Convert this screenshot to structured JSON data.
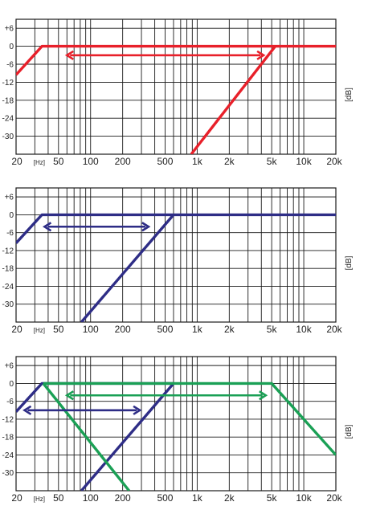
{
  "chart_data": [
    {
      "type": "line",
      "x_scale": "log",
      "xlim": [
        20,
        20000
      ],
      "ylim": [
        -36,
        9
      ],
      "x_ticks": [
        {
          "value": 20,
          "label": "20"
        },
        {
          "value": 33,
          "label": "[Hz]"
        },
        {
          "value": 50,
          "label": "50"
        },
        {
          "value": 100,
          "label": "100"
        },
        {
          "value": 200,
          "label": "200"
        },
        {
          "value": 500,
          "label": "500"
        },
        {
          "value": 1000,
          "label": "1k"
        },
        {
          "value": 2000,
          "label": "2k"
        },
        {
          "value": 5000,
          "label": "5k"
        },
        {
          "value": 10000,
          "label": "10k"
        },
        {
          "value": 20000,
          "label": "20k"
        }
      ],
      "y_ticks": [
        {
          "value": 6,
          "label": "+6"
        },
        {
          "value": 0,
          "label": "0"
        },
        {
          "value": -6,
          "label": "-6"
        },
        {
          "value": -12,
          "label": "-12"
        },
        {
          "value": -18,
          "label": "-18"
        },
        {
          "value": -24,
          "label": "-24"
        },
        {
          "value": -30,
          "label": "-30"
        }
      ],
      "ylabel": "[dB]",
      "grid": true,
      "series": [
        {
          "color": "#e8202a",
          "points": [
            [
              20,
              -9.5
            ],
            [
              35,
              0
            ],
            [
              5400,
              0
            ],
            [
              20000,
              0
            ]
          ]
        },
        {
          "color": "#e8202a",
          "points": [
            [
              880,
              -36
            ],
            [
              5400,
              0
            ]
          ]
        }
      ],
      "arrows": [
        {
          "color": "#e8202a",
          "from": 60,
          "to": 4200,
          "y": -3
        }
      ]
    },
    {
      "type": "line",
      "x_scale": "log",
      "xlim": [
        20,
        20000
      ],
      "ylim": [
        -36,
        9
      ],
      "x_ticks": [
        {
          "value": 20,
          "label": "20"
        },
        {
          "value": 33,
          "label": "[Hz]"
        },
        {
          "value": 50,
          "label": "50"
        },
        {
          "value": 100,
          "label": "100"
        },
        {
          "value": 200,
          "label": "200"
        },
        {
          "value": 500,
          "label": "500"
        },
        {
          "value": 1000,
          "label": "1k"
        },
        {
          "value": 2000,
          "label": "2k"
        },
        {
          "value": 5000,
          "label": "5k"
        },
        {
          "value": 10000,
          "label": "10k"
        },
        {
          "value": 20000,
          "label": "20k"
        }
      ],
      "y_ticks": [
        {
          "value": 6,
          "label": "+6"
        },
        {
          "value": 0,
          "label": "0"
        },
        {
          "value": -6,
          "label": "-6"
        },
        {
          "value": -12,
          "label": "-12"
        },
        {
          "value": -18,
          "label": "-18"
        },
        {
          "value": -24,
          "label": "-24"
        },
        {
          "value": -30,
          "label": "-30"
        }
      ],
      "ylabel": "[dB]",
      "grid": true,
      "series": [
        {
          "color": "#2e2d86",
          "points": [
            [
              20,
              -9.5
            ],
            [
              35,
              0
            ],
            [
              600,
              0
            ],
            [
              20000,
              0
            ]
          ]
        },
        {
          "color": "#2e2d86",
          "points": [
            [
              82,
              -36
            ],
            [
              600,
              0
            ]
          ]
        }
      ],
      "arrows": [
        {
          "color": "#2e2d86",
          "from": 37,
          "to": 350,
          "y": -4
        }
      ]
    },
    {
      "type": "line",
      "x_scale": "log",
      "xlim": [
        20,
        20000
      ],
      "ylim": [
        -36,
        9
      ],
      "x_ticks": [
        {
          "value": 20,
          "label": "20"
        },
        {
          "value": 33,
          "label": "[Hz]"
        },
        {
          "value": 50,
          "label": "50"
        },
        {
          "value": 100,
          "label": "100"
        },
        {
          "value": 200,
          "label": "200"
        },
        {
          "value": 500,
          "label": "500"
        },
        {
          "value": 1000,
          "label": "1k"
        },
        {
          "value": 2000,
          "label": "2k"
        },
        {
          "value": 5000,
          "label": "5k"
        },
        {
          "value": 10000,
          "label": "10k"
        },
        {
          "value": 20000,
          "label": "20k"
        }
      ],
      "y_ticks": [
        {
          "value": 6,
          "label": "+6"
        },
        {
          "value": 0,
          "label": "0"
        },
        {
          "value": -6,
          "label": "-6"
        },
        {
          "value": -12,
          "label": "-12"
        },
        {
          "value": -18,
          "label": "-18"
        },
        {
          "value": -24,
          "label": "-24"
        },
        {
          "value": -30,
          "label": "-30"
        }
      ],
      "ylabel": "[dB]",
      "grid": true,
      "series": [
        {
          "color": "#2e2d86",
          "points": [
            [
              20,
              -9.5
            ],
            [
              35,
              0
            ],
            [
              600,
              0
            ]
          ]
        },
        {
          "color": "#2e2d86",
          "points": [
            [
              82,
              -36
            ],
            [
              600,
              0
            ]
          ]
        },
        {
          "color": "#1aa055",
          "points": [
            [
              36,
              0
            ],
            [
              5000,
              0
            ],
            [
              20000,
              -24
            ]
          ]
        },
        {
          "color": "#1aa055",
          "points": [
            [
              36,
              0
            ],
            [
              230,
              -36
            ]
          ]
        }
      ],
      "arrows": [
        {
          "color": "#1aa055",
          "from": 60,
          "to": 4400,
          "y": -4
        },
        {
          "color": "#2e2d86",
          "from": 24,
          "to": 290,
          "y": -9
        }
      ]
    }
  ]
}
